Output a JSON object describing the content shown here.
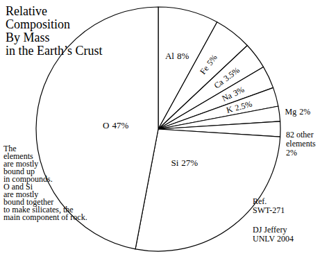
{
  "chart_data": {
    "type": "pie",
    "title": [
      "Relative",
      "Composition",
      "By Mass",
      "in the Earth’s Crust"
    ],
    "categories": [
      "Al",
      "Fe",
      "Ca",
      "Na",
      "K",
      "Mg",
      "82 other elements",
      "Si",
      "O"
    ],
    "values": [
      8,
      5,
      3.5,
      3,
      2.5,
      2,
      2,
      27,
      47
    ],
    "value_labels": [
      "8%",
      "5%",
      "3.5%",
      "3%",
      "2.5%",
      "2%",
      "2%",
      "27%",
      "47%"
    ],
    "color": "#ffffff",
    "data_labels": true,
    "annotations": [
      [
        "The",
        "elements",
        "are mostly",
        "bound up",
        "in compounds.",
        "O and Si",
        "are mostly",
        "bound together",
        "to make silicates, the",
        "main component of rock."
      ],
      [
        "Ref.",
        "SWT-271"
      ],
      [
        "DJ Jeffery",
        "UNLV 2004"
      ]
    ]
  }
}
